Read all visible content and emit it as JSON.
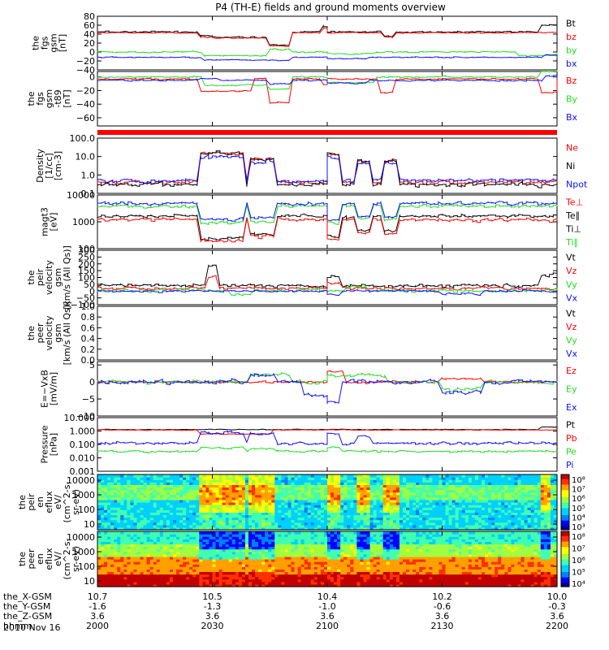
{
  "title": "P4 (TH-E) fields and ground moments overview",
  "date_label": "2010 Nov 16",
  "ephemeris": {
    "row_labels": [
      "the_X-GSM",
      "the_Y-GSM",
      "the_Z-GSM",
      "hhmm"
    ],
    "columns": [
      [
        "10.7",
        "-1.6",
        "3.6",
        "2000"
      ],
      [
        "10.5",
        "-1.3",
        "3.6",
        "2030"
      ],
      [
        "10.4",
        "-1.0",
        "3.6",
        "2100"
      ],
      [
        "10.2",
        "-0.6",
        "3.6",
        "2130"
      ],
      [
        "10.0",
        "-0.3",
        "3.6",
        "2200"
      ]
    ]
  },
  "colors": {
    "black": "#000000",
    "red": "#ff0000",
    "green": "#22dd22",
    "blue": "#1010ff"
  },
  "chart_data": [
    {
      "type": "line",
      "ylabel": [
        "the",
        "fgs",
        "gsm",
        "[nT]"
      ],
      "yticks": [
        "80",
        "60",
        "40",
        "20",
        "0",
        "−20",
        "−40"
      ],
      "ylim": [
        -40,
        80
      ],
      "legend": [
        {
          "label": "Bt",
          "color": "black"
        },
        {
          "label": "bz",
          "color": "red"
        },
        {
          "label": "by",
          "color": "green"
        },
        {
          "label": "bx",
          "color": "blue"
        }
      ],
      "series": [
        {
          "name": "Bt",
          "color": "black",
          "base": 45,
          "noise": 3,
          "events": [
            [
              2027,
              2031,
              -10
            ],
            [
              2031,
              2044,
              -12
            ],
            [
              2045,
              2050,
              -30
            ],
            [
              2059,
              2062,
              12
            ],
            [
              2115,
              2117,
              -10
            ],
            [
              2156,
              2160,
              15
            ]
          ]
        },
        {
          "name": "bz",
          "color": "red",
          "base": 43,
          "noise": 2,
          "events": [
            [
              2027,
              2031,
              -10
            ],
            [
              2031,
              2044,
              -12
            ],
            [
              2045,
              2050,
              -30
            ],
            [
              2059,
              2062,
              10
            ],
            [
              2115,
              2117,
              -10
            ]
          ]
        },
        {
          "name": "by",
          "color": "green",
          "base": 0,
          "noise": 3,
          "events": [
            [
              2028,
              2045,
              -8
            ],
            [
              2045,
              2050,
              6
            ],
            [
              2100,
              2112,
              -4
            ],
            [
              2150,
              2160,
              -8
            ]
          ]
        },
        {
          "name": "bx",
          "color": "blue",
          "base": -12,
          "noise": 2,
          "events": [
            [
              2028,
              2045,
              -6
            ],
            [
              2045,
              2050,
              -6
            ],
            [
              2100,
              2110,
              -3
            ],
            [
              2157,
              2160,
              6
            ]
          ]
        }
      ]
    },
    {
      "type": "line",
      "ylabel": [
        "the",
        "fgs",
        "gsm",
        "-t89",
        "[nT]"
      ],
      "yticks": [
        "0",
        "−20",
        "−40",
        "−60"
      ],
      "ylim": [
        -72,
        8
      ],
      "legend": [
        {
          "label": "Bz",
          "color": "red"
        },
        {
          "label": "By",
          "color": "green"
        },
        {
          "label": "Bx",
          "color": "blue"
        }
      ],
      "series": [
        {
          "name": "Bz",
          "color": "red",
          "base": -3,
          "noise": 2,
          "events": [
            [
              2027,
              2040,
              -18
            ],
            [
              2045,
              2050,
              -35
            ],
            [
              2059,
              2061,
              -8
            ],
            [
              2114,
              2117,
              -20
            ],
            [
              2156,
              2160,
              -20
            ]
          ]
        },
        {
          "name": "By",
          "color": "green",
          "base": 0,
          "noise": 2,
          "events": [
            [
              2028,
              2045,
              -12
            ],
            [
              2045,
              2050,
              -18
            ],
            [
              2100,
              2112,
              -8
            ],
            [
              2156,
              2160,
              8
            ]
          ]
        },
        {
          "name": "Bx",
          "color": "blue",
          "base": -5,
          "noise": 2,
          "events": [
            [
              2027,
              2031,
              2
            ],
            [
              2045,
              2050,
              -5
            ],
            [
              2100,
              2110,
              -4
            ],
            [
              2157,
              2160,
              6
            ]
          ]
        }
      ]
    },
    {
      "type": "line",
      "log": true,
      "ylabel": [
        "Density",
        "[1/cc]",
        "[cm-3]"
      ],
      "yticks": [
        "100.0",
        "10.0",
        "1.0",
        "0.1"
      ],
      "ylim": [
        0.1,
        100
      ],
      "legend": [
        {
          "label": "Ne",
          "color": "red"
        },
        {
          "label": "Ni",
          "color": "black"
        },
        {
          "label": "Npot",
          "color": "blue"
        }
      ],
      "series": [
        {
          "name": "Ne",
          "color": "red",
          "base": 0.4,
          "noise": 0.2,
          "events": [
            [
              2027,
              2038,
              15
            ],
            [
              2040,
              2046,
              7
            ],
            [
              2100,
              2103,
              12
            ],
            [
              2108,
              2111,
              6
            ],
            [
              2115,
              2118,
              6
            ]
          ]
        },
        {
          "name": "Ni",
          "color": "black",
          "base": 0.3,
          "noise": 0.2,
          "events": [
            [
              2027,
              2038,
              15
            ],
            [
              2040,
              2046,
              7
            ],
            [
              2100,
              2103,
              12
            ],
            [
              2108,
              2111,
              6
            ],
            [
              2115,
              2118,
              6
            ]
          ]
        },
        {
          "name": "Npot",
          "color": "blue",
          "base": 0.5,
          "noise": 0.2,
          "events": [
            [
              2027,
              2038,
              10
            ],
            [
              2040,
              2046,
              5
            ],
            [
              2100,
              2103,
              8
            ],
            [
              2108,
              2111,
              4
            ],
            [
              2115,
              2118,
              4
            ]
          ]
        }
      ]
    },
    {
      "type": "line",
      "log": true,
      "ylabel": [
        "magt3",
        "[eV]"
      ],
      "yticks": [
        "10000",
        "1000",
        "100"
      ],
      "ylim": [
        30,
        10000
      ],
      "legend": [
        {
          "label": "Te⊥",
          "color": "red"
        },
        {
          "label": "Te∥",
          "color": "black"
        },
        {
          "label": "Ti⊥",
          "color": "black"
        },
        {
          "label": "Ti∥",
          "color": "green"
        }
      ],
      "series": [
        {
          "name": "Ti∥",
          "color": "green",
          "base": 3000,
          "noise": 0.15,
          "events": [
            [
              2027,
              2038,
              500
            ],
            [
              2040,
              2046,
              600
            ],
            [
              2100,
              2103,
              500
            ],
            [
              2108,
              2111,
              800
            ],
            [
              2115,
              2118,
              700
            ]
          ]
        },
        {
          "name": "Ti⊥",
          "color": "blue",
          "base": 4000,
          "noise": 0.15,
          "events": [
            [
              2027,
              2038,
              700
            ],
            [
              2040,
              2046,
              900
            ],
            [
              2100,
              2103,
              600
            ],
            [
              2108,
              2111,
              1000
            ],
            [
              2115,
              2118,
              900
            ]
          ]
        },
        {
          "name": "Te∥",
          "color": "black",
          "base": 1000,
          "noise": 0.15,
          "events": [
            [
              2027,
              2038,
              90
            ],
            [
              2040,
              2046,
              150
            ],
            [
              2100,
              2103,
              100
            ],
            [
              2108,
              2111,
              200
            ],
            [
              2115,
              2118,
              200
            ]
          ]
        },
        {
          "name": "Te⊥",
          "color": "red",
          "base": 700,
          "noise": 0.15,
          "events": [
            [
              2027,
              2038,
              70
            ],
            [
              2040,
              2046,
              120
            ],
            [
              2100,
              2103,
              80
            ],
            [
              2108,
              2111,
              150
            ],
            [
              2115,
              2118,
              150
            ]
          ]
        }
      ]
    },
    {
      "type": "line",
      "ylabel": [
        "the",
        "peir",
        "velocity",
        "gsm",
        "[km/s (All Qs)]"
      ],
      "yticks": [
        "300",
        "250",
        "200",
        "150",
        "100",
        "50",
        "0",
        "−50",
        "−100"
      ],
      "ylim": [
        -100,
        300
      ],
      "legend": [
        {
          "label": "Vt",
          "color": "black"
        },
        {
          "label": "Vz",
          "color": "red"
        },
        {
          "label": "Vy",
          "color": "green"
        },
        {
          "label": "Vx",
          "color": "blue"
        }
      ],
      "series": [
        {
          "name": "Vt",
          "color": "black",
          "base": 40,
          "noise": 25,
          "events": [
            [
              2029,
              2031,
              150
            ],
            [
              2100,
              2103,
              70
            ],
            [
              2156,
              2160,
              80
            ]
          ]
        },
        {
          "name": "Vz",
          "color": "red",
          "base": 20,
          "noise": 20,
          "events": [
            [
              2029,
              2031,
              80
            ],
            [
              2100,
              2103,
              40
            ]
          ]
        },
        {
          "name": "Vy",
          "color": "green",
          "base": 5,
          "noise": 20,
          "events": [
            [
              2035,
              2040,
              -30
            ],
            [
              2105,
              2110,
              30
            ]
          ]
        },
        {
          "name": "Vx",
          "color": "blue",
          "base": 0,
          "noise": 15,
          "events": [
            [
              2100,
              2103,
              -30
            ],
            [
              2130,
              2140,
              -20
            ]
          ]
        }
      ]
    },
    {
      "type": "line",
      "ylabel": [
        "the",
        "peer",
        "velocity",
        "gsm",
        "[km/s (All Qs)]"
      ],
      "yticks": [
        "1.0",
        "0.8",
        "0.6",
        "0.4",
        "0.2",
        "0.0"
      ],
      "ylim": [
        0,
        1
      ],
      "legend": [
        {
          "label": "Vt",
          "color": "black"
        },
        {
          "label": "Vz",
          "color": "red"
        },
        {
          "label": "Vy",
          "color": "green"
        },
        {
          "label": "Vx",
          "color": "blue"
        }
      ],
      "series": []
    },
    {
      "type": "line",
      "ylabel": [
        "E=−VxB",
        "[mV/m]"
      ],
      "yticks": [
        "5",
        "0",
        "−5",
        "−10"
      ],
      "ylim": [
        -10,
        6
      ],
      "legend": [
        {
          "label": "Ez",
          "color": "red"
        },
        {
          "label": "Ey",
          "color": "green"
        },
        {
          "label": "Ex",
          "color": "blue"
        }
      ],
      "series": [
        {
          "name": "Ez",
          "color": "red",
          "base": 0,
          "noise": 0.6,
          "events": [
            [
              2100,
              2104,
              3
            ],
            [
              2130,
              2140,
              1
            ]
          ]
        },
        {
          "name": "Ey",
          "color": "green",
          "base": 0,
          "noise": 1.0,
          "events": [
            [
              2040,
              2050,
              2
            ],
            [
              2100,
              2115,
              2
            ],
            [
              2130,
              2140,
              -2
            ]
          ]
        },
        {
          "name": "Ex",
          "color": "blue",
          "base": 0,
          "noise": 1.2,
          "events": [
            [
              2040,
              2046,
              2
            ],
            [
              2054,
              2060,
              -4
            ],
            [
              2100,
              2103,
              -6
            ],
            [
              2130,
              2140,
              -3
            ]
          ]
        }
      ]
    },
    {
      "type": "line",
      "log": true,
      "ylabel": [
        "Pressure",
        "[nPa]"
      ],
      "yticks": [
        "10.000",
        "1.000",
        "0.100",
        "0.010",
        "0.001"
      ],
      "ylim": [
        0.001,
        10
      ],
      "legend": [
        {
          "label": "Pt",
          "color": "black"
        },
        {
          "label": "Pb",
          "color": "red"
        },
        {
          "label": "Pe",
          "color": "green"
        },
        {
          "label": "Pi",
          "color": "blue"
        }
      ],
      "series": [
        {
          "name": "Pt",
          "color": "black",
          "base": 1.3,
          "noise": 0.05,
          "events": [
            [
              2156,
              2160,
              2.0
            ]
          ]
        },
        {
          "name": "Pb",
          "color": "red",
          "base": 1.2,
          "noise": 0.05,
          "events": [
            [
              2027,
              2045,
              0.6
            ]
          ]
        },
        {
          "name": "Pi",
          "color": "blue",
          "base": 0.12,
          "noise": 0.2,
          "events": [
            [
              2027,
              2038,
              0.8
            ],
            [
              2040,
              2046,
              0.6
            ],
            [
              2100,
              2103,
              0.7
            ],
            [
              2108,
              2111,
              0.4
            ]
          ]
        },
        {
          "name": "Pe",
          "color": "green",
          "base": 0.03,
          "noise": 0.15,
          "events": [
            [
              2027,
              2038,
              0.06
            ],
            [
              2040,
              2046,
              0.05
            ],
            [
              2100,
              2103,
              0.06
            ]
          ]
        }
      ]
    },
    {
      "type": "heatmap",
      "ylabel": [
        "the",
        "peir",
        "en",
        "eflux",
        "eV/",
        "(cm^2-s-",
        "sr-eV)"
      ],
      "yticks": [
        "10000",
        "1000",
        "100",
        "10"
      ],
      "ylim": [
        10,
        30000
      ],
      "colorbar_ticks": [
        "10⁸",
        "10⁷",
        "10⁶",
        "10⁵",
        "10⁴",
        "10³"
      ],
      "colorbar_range": [
        1000,
        100000000
      ]
    },
    {
      "type": "heatmap",
      "ylabel": [
        "the",
        "peer",
        "en",
        "eflux",
        "eV/",
        "(cm^2-s-",
        "sr-eV)"
      ],
      "yticks": [
        "10000",
        "1000",
        "100",
        "10"
      ],
      "ylim": [
        10,
        30000
      ],
      "colorbar_ticks": [
        "10⁸",
        "10⁷",
        "10⁶",
        "10⁵",
        "10⁴"
      ],
      "colorbar_range": [
        3000,
        300000000
      ]
    }
  ]
}
